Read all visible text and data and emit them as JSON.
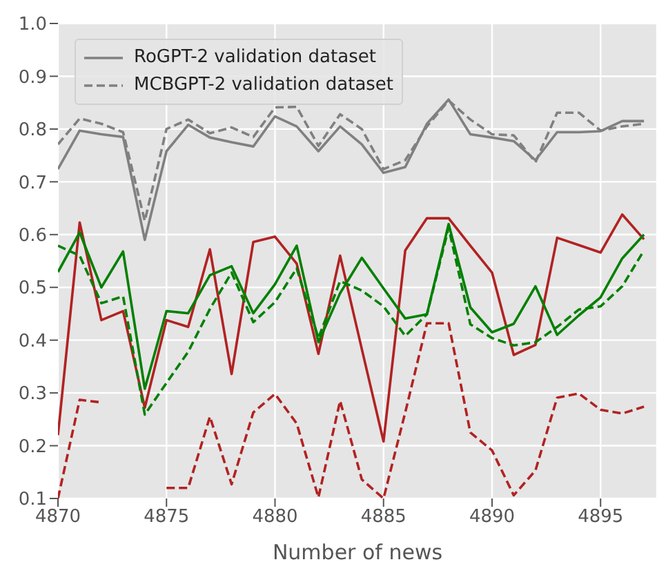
{
  "chart_data": {
    "type": "line",
    "xlabel": "Number of news",
    "x": [
      4870,
      4871,
      4872,
      4873,
      4874,
      4875,
      4876,
      4877,
      4878,
      4879,
      4880,
      4881,
      4882,
      4883,
      4884,
      4885,
      4886,
      4887,
      4888,
      4889,
      4890,
      4891,
      4892,
      4893,
      4894,
      4895,
      4896,
      4897
    ],
    "xlim": [
      4870,
      4897.6
    ],
    "xticks": [
      4870,
      4875,
      4880,
      4885,
      4890,
      4895
    ],
    "ylim": [
      0.1,
      1.0
    ],
    "yticks": [
      0.1,
      0.2,
      0.3,
      0.4,
      0.5,
      0.6,
      0.7,
      0.8,
      0.9,
      {
        "value": 1.0,
        "label": "1.0"
      }
    ],
    "grid": true,
    "legend": "top left",
    "marker": "none",
    "series": [
      {
        "name": "RoGPT-2 validation dataset",
        "color": "#808080",
        "line_style": "solid",
        "values": [
          0.724,
          0.797,
          0.79,
          0.785,
          0.59,
          0.758,
          0.808,
          0.784,
          0.775,
          0.767,
          0.824,
          0.805,
          0.758,
          0.805,
          0.771,
          0.717,
          0.728,
          0.81,
          0.856,
          0.79,
          0.784,
          0.777,
          0.741,
          0.794,
          0.794,
          0.796,
          0.815,
          0.815
        ]
      },
      {
        "name": "MCBGPT-2 validation dataset",
        "color": "#808080",
        "line_style": "dashed",
        "values": [
          0.771,
          0.82,
          0.81,
          0.794,
          0.626,
          0.8,
          0.818,
          0.792,
          0.803,
          0.785,
          0.841,
          0.842,
          0.768,
          0.828,
          0.8,
          0.724,
          0.741,
          0.805,
          0.854,
          0.818,
          0.79,
          0.788,
          0.737,
          0.831,
          0.831,
          0.797,
          0.805,
          0.81
        ]
      },
      {
        "color": "#b22222",
        "line_style": "solid",
        "values": [
          0.22,
          0.623,
          0.438,
          0.455,
          0.272,
          0.438,
          0.425,
          0.572,
          0.336,
          0.586,
          0.596,
          0.545,
          0.374,
          0.56,
          0.383,
          0.208,
          0.57,
          0.631,
          0.631,
          0.579,
          0.528,
          0.372,
          0.391,
          0.594,
          0.58,
          0.566,
          0.638,
          0.591
        ]
      },
      {
        "color": "#b22222",
        "line_style": "dashed",
        "values": [
          0.1,
          0.287,
          0.282,
          null,
          null,
          0.12,
          0.12,
          0.255,
          0.127,
          0.263,
          0.298,
          0.242,
          0.102,
          0.285,
          0.136,
          0.1,
          0.263,
          0.432,
          0.432,
          0.225,
          0.191,
          0.106,
          0.153,
          0.291,
          0.299,
          0.268,
          0.261,
          0.274
        ]
      },
      {
        "color": "#008000",
        "line_style": "solid",
        "values": [
          0.529,
          0.604,
          0.5,
          0.568,
          0.308,
          0.455,
          0.451,
          0.523,
          0.54,
          0.451,
          0.506,
          0.579,
          0.396,
          0.489,
          0.556,
          0.498,
          0.441,
          0.449,
          0.62,
          0.462,
          0.415,
          0.431,
          0.502,
          0.41,
          0.447,
          0.481,
          0.555,
          0.6
        ]
      },
      {
        "color": "#008000",
        "line_style": "dashed",
        "values": [
          0.579,
          0.56,
          0.47,
          0.483,
          0.259,
          0.319,
          0.378,
          0.459,
          0.528,
          0.434,
          0.472,
          0.536,
          0.404,
          0.512,
          0.494,
          0.464,
          0.408,
          0.449,
          0.613,
          0.43,
          0.404,
          0.39,
          0.396,
          0.425,
          0.458,
          0.464,
          0.502,
          0.57
        ]
      }
    ]
  }
}
